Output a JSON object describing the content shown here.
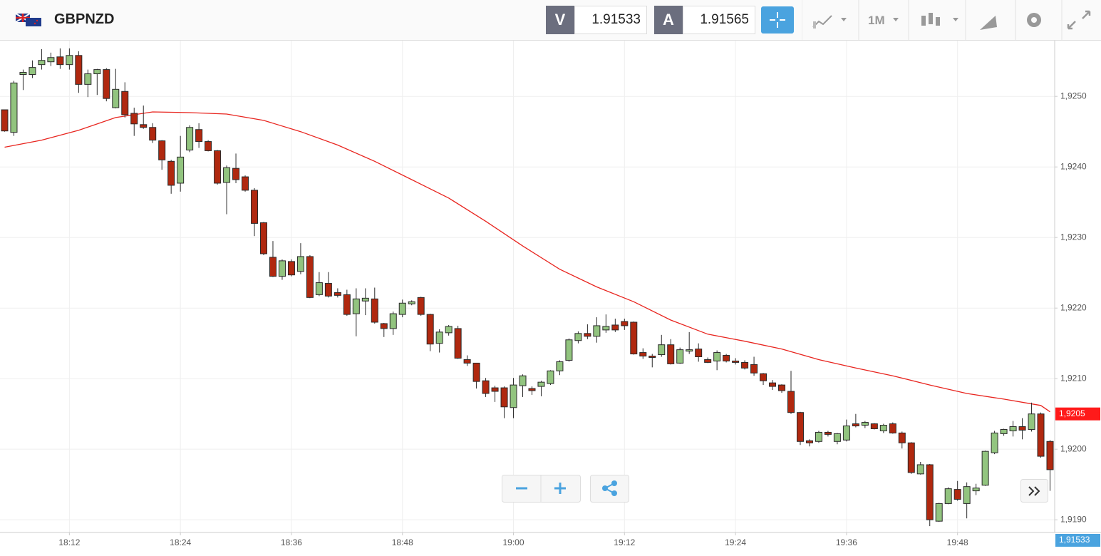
{
  "header": {
    "symbol": "GBPNZD",
    "sell_label": "V",
    "sell_price": "1.91533",
    "buy_label": "A",
    "buy_price": "1.91565",
    "timeframe": "1M"
  },
  "chart_data": {
    "type": "candlestick",
    "up_color": "#92c47f",
    "down_color": "#b0280f",
    "outline_color": "#2a2a2a",
    "grid": true,
    "xlim": [
      "18:04:30",
      "19:58:30"
    ],
    "xticks": [
      "18:12",
      "18:24",
      "18:36",
      "18:48",
      "19:00",
      "19:12",
      "19:24",
      "19:36",
      "19:48"
    ],
    "ylim": [
      1.91882,
      1.92579
    ],
    "yticks": [
      {
        "value": 1.919,
        "label": "1,9190"
      },
      {
        "value": 1.92,
        "label": "1,9200"
      },
      {
        "value": 1.921,
        "label": "1,9210"
      },
      {
        "value": 1.922,
        "label": "1,9220"
      },
      {
        "value": 1.923,
        "label": "1,9230"
      },
      {
        "value": 1.924,
        "label": "1,9240"
      },
      {
        "value": 1.925,
        "label": "1,9250"
      }
    ],
    "x": [
      "18:05",
      "18:06",
      "18:07",
      "18:08",
      "18:09",
      "18:10",
      "18:11",
      "18:12",
      "18:13",
      "18:14",
      "18:15",
      "18:16",
      "18:17",
      "18:18",
      "18:19",
      "18:20",
      "18:21",
      "18:22",
      "18:23",
      "18:24",
      "18:25",
      "18:26",
      "18:27",
      "18:28",
      "18:29",
      "18:30",
      "18:31",
      "18:32",
      "18:33",
      "18:34",
      "18:35",
      "18:36",
      "18:37",
      "18:38",
      "18:39",
      "18:40",
      "18:41",
      "18:42",
      "18:43",
      "18:44",
      "18:45",
      "18:46",
      "18:47",
      "18:48",
      "18:49",
      "18:50",
      "18:51",
      "18:52",
      "18:53",
      "18:54",
      "18:55",
      "18:56",
      "18:57",
      "18:58",
      "18:59",
      "19:00",
      "19:01",
      "19:02",
      "19:03",
      "19:04",
      "19:05",
      "19:06",
      "19:07",
      "19:08",
      "19:09",
      "19:10",
      "19:11",
      "19:12",
      "19:13",
      "19:14",
      "19:15",
      "19:16",
      "19:17",
      "19:18",
      "19:19",
      "19:20",
      "19:21",
      "19:22",
      "19:23",
      "19:24",
      "19:25",
      "19:26",
      "19:27",
      "19:28",
      "19:29",
      "19:30",
      "19:31",
      "19:32",
      "19:33",
      "19:34",
      "19:35",
      "19:36",
      "19:37",
      "19:38",
      "19:39",
      "19:40",
      "19:41",
      "19:42",
      "19:43",
      "19:44",
      "19:45",
      "19:46",
      "19:47",
      "19:48",
      "19:49",
      "19:50",
      "19:51",
      "19:52",
      "19:53",
      "19:54",
      "19:55",
      "19:56",
      "19:57",
      "19:58"
    ],
    "open": [
      1.92481,
      1.92449,
      1.92531,
      1.92531,
      1.92545,
      1.92549,
      1.92556,
      1.92545,
      1.92558,
      1.92517,
      1.92532,
      1.92538,
      1.92484,
      1.92507,
      1.92476,
      1.9246,
      1.92456,
      1.92437,
      1.92408,
      1.92377,
      1.92424,
      1.92453,
      1.92436,
      1.92423,
      1.92378,
      1.92398,
      1.92386,
      1.92367,
      1.92321,
      1.92272,
      1.92245,
      1.92266,
      1.92252,
      1.92273,
      1.92219,
      1.92235,
      1.92222,
      1.92219,
      1.92192,
      1.9221,
      1.92213,
      1.92178,
      1.92171,
      1.92191,
      1.92206,
      1.92215,
      1.92191,
      1.9215,
      1.92165,
      1.92171,
      1.92127,
      1.92122,
      1.92097,
      1.92087,
      1.92087,
      1.92059,
      1.9209,
      1.92086,
      1.92089,
      1.92093,
      1.92111,
      1.92126,
      1.92154,
      1.92164,
      1.9216,
      1.92169,
      1.92176,
      1.92181,
      1.9218,
      1.92137,
      1.92132,
      1.92134,
      1.92148,
      1.92122,
      1.92139,
      1.92142,
      1.92127,
      1.92125,
      1.92133,
      1.92125,
      1.92123,
      1.9212,
      1.92107,
      1.92094,
      1.92091,
      1.92082,
      1.92052,
      1.92012,
      1.92011,
      1.92024,
      1.92011,
      1.92013,
      1.92036,
      1.92034,
      1.92036,
      1.92026,
      1.92036,
      1.92023,
      1.92009,
      1.91965,
      1.91978,
      1.91898,
      1.91923,
      1.91943,
      1.91923,
      1.91941,
      1.91949,
      1.91995,
      1.92022,
      1.92026,
      1.92032,
      1.92028,
      1.9205,
      1.92011
    ],
    "high": [
      1.92481,
      1.92522,
      1.92538,
      1.92551,
      1.92567,
      1.92562,
      1.92568,
      1.92568,
      1.92564,
      1.92538,
      1.92539,
      1.9254,
      1.92539,
      1.9252,
      1.92484,
      1.92487,
      1.92462,
      1.92438,
      1.9241,
      1.92444,
      1.92459,
      1.92462,
      1.92438,
      1.92424,
      1.92402,
      1.92419,
      1.92388,
      1.9237,
      1.92322,
      1.92295,
      1.92269,
      1.92269,
      1.92292,
      1.92275,
      1.92251,
      1.92251,
      1.92228,
      1.92226,
      1.92228,
      1.92228,
      1.92229,
      1.92179,
      1.92195,
      1.92212,
      1.92211,
      1.92216,
      1.92192,
      1.9217,
      1.92176,
      1.92175,
      1.92133,
      1.92122,
      1.92101,
      1.9209,
      1.92089,
      1.92101,
      1.92106,
      1.92089,
      1.92097,
      1.92112,
      1.92126,
      1.92157,
      1.92167,
      1.92177,
      1.92187,
      1.92191,
      1.92185,
      1.92185,
      1.92181,
      1.92143,
      1.92135,
      1.92162,
      1.92156,
      1.92144,
      1.92166,
      1.9215,
      1.9213,
      1.9214,
      1.92135,
      1.92129,
      1.92126,
      1.92131,
      1.92108,
      1.92098,
      1.92092,
      1.92111,
      1.92053,
      1.92014,
      1.92026,
      1.92026,
      1.92023,
      1.92042,
      1.9205,
      1.9204,
      1.92037,
      1.92036,
      1.92038,
      1.92025,
      1.9201,
      1.91982,
      1.91979,
      1.91924,
      1.91946,
      1.91955,
      1.91953,
      1.91951,
      1.91998,
      1.92026,
      1.92029,
      1.9204,
      1.92044,
      1.92066,
      1.92052,
      1.92013
    ],
    "low": [
      1.9245,
      1.92444,
      1.92509,
      1.92526,
      1.92538,
      1.92543,
      1.92539,
      1.92538,
      1.92505,
      1.92499,
      1.92502,
      1.92493,
      1.92483,
      1.9247,
      1.92444,
      1.92454,
      1.92434,
      1.92396,
      1.92362,
      1.92365,
      1.92421,
      1.92427,
      1.92422,
      1.92375,
      1.92333,
      1.92377,
      1.92365,
      1.92302,
      1.92275,
      1.92244,
      1.9224,
      1.92245,
      1.92248,
      1.92214,
      1.92217,
      1.92215,
      1.92215,
      1.92189,
      1.9216,
      1.9219,
      1.92178,
      1.92159,
      1.92162,
      1.92187,
      1.92204,
      1.92189,
      1.92139,
      1.92137,
      1.92161,
      1.92128,
      1.92118,
      1.92086,
      1.92074,
      1.92067,
      1.92044,
      1.92044,
      1.92074,
      1.92077,
      1.92075,
      1.92091,
      1.92105,
      1.92124,
      1.9215,
      1.92156,
      1.92151,
      1.92165,
      1.92166,
      1.92169,
      1.92134,
      1.92128,
      1.92116,
      1.92131,
      1.9212,
      1.92121,
      1.92135,
      1.92124,
      1.92122,
      1.92112,
      1.92123,
      1.9212,
      1.92113,
      1.92104,
      1.92091,
      1.92084,
      1.9208,
      1.9205,
      1.92006,
      1.92004,
      1.92009,
      1.92018,
      1.92007,
      1.92011,
      1.92031,
      1.9203,
      1.92028,
      1.92023,
      1.92022,
      1.92001,
      1.91965,
      1.91964,
      1.91891,
      1.91897,
      1.91922,
      1.91927,
      1.91902,
      1.91935,
      1.91948,
      1.91993,
      1.92019,
      1.92018,
      1.92014,
      1.92025,
      1.91988,
      1.91941
    ],
    "close": [
      1.92451,
      1.92519,
      1.92534,
      1.92541,
      1.92551,
      1.92555,
      1.92545,
      1.92558,
      1.92517,
      1.92532,
      1.92538,
      1.92497,
      1.9251,
      1.92474,
      1.92461,
      1.92456,
      1.92438,
      1.9241,
      1.92374,
      1.92414,
      1.92456,
      1.92436,
      1.92423,
      1.92377,
      1.92399,
      1.92382,
      1.92367,
      1.9232,
      1.92277,
      1.92245,
      1.92267,
      1.92247,
      1.92273,
      1.92215,
      1.92236,
      1.92217,
      1.92218,
      1.92191,
      1.92213,
      1.92214,
      1.9218,
      1.92171,
      1.92192,
      1.92207,
      1.92209,
      1.92191,
      1.92149,
      1.92166,
      1.92174,
      1.92129,
      1.92122,
      1.92096,
      1.92079,
      1.92082,
      1.9206,
      1.92091,
      1.92104,
      1.92083,
      1.92095,
      1.92111,
      1.92124,
      1.92155,
      1.92164,
      1.9216,
      1.92175,
      1.92174,
      1.92169,
      1.92175,
      1.92135,
      1.92132,
      1.9213,
      1.92148,
      1.92121,
      1.92141,
      1.92141,
      1.92131,
      1.92123,
      1.92137,
      1.92125,
      1.92123,
      1.92115,
      1.92108,
      1.92097,
      1.92089,
      1.92083,
      1.92052,
      1.92011,
      1.92009,
      1.92024,
      1.92021,
      1.92022,
      1.92033,
      1.92033,
      1.92038,
      1.92029,
      1.92034,
      1.92023,
      1.92009,
      1.91967,
      1.91978,
      1.919,
      1.91923,
      1.91944,
      1.91929,
      1.91947,
      1.91945,
      1.91997,
      1.92023,
      1.92028,
      1.92032,
      1.92027,
      1.9205,
      1.9199,
      1.91971
    ],
    "lines": [
      {
        "color": "#e8251f",
        "x": [
          "18:05",
          "18:09",
          "18:13",
          "18:17",
          "18:21",
          "18:25",
          "18:29",
          "18:33",
          "18:37",
          "18:41",
          "18:45",
          "18:49",
          "18:53",
          "18:57",
          "19:01",
          "19:05",
          "19:09",
          "19:13",
          "19:17",
          "19:21",
          "19:25",
          "19:29",
          "19:33",
          "19:37",
          "19:41",
          "19:45",
          "19:49",
          "19:53",
          "19:57",
          "19:58"
        ],
        "values": [
          1.92428,
          1.92438,
          1.92452,
          1.9247,
          1.92478,
          1.92477,
          1.92475,
          1.92466,
          1.9245,
          1.92431,
          1.92408,
          1.92382,
          1.92356,
          1.92323,
          1.92288,
          1.92255,
          1.9223,
          1.92209,
          1.92183,
          1.92163,
          1.92153,
          1.92142,
          1.92127,
          1.92115,
          1.92104,
          1.92091,
          1.92079,
          1.92071,
          1.92062,
          1.92053
        ]
      }
    ],
    "ma_tag": {
      "value": 1.9205,
      "label": "1,9205"
    },
    "bid_tag": {
      "value": 1.91533,
      "label": "1,91533"
    }
  }
}
